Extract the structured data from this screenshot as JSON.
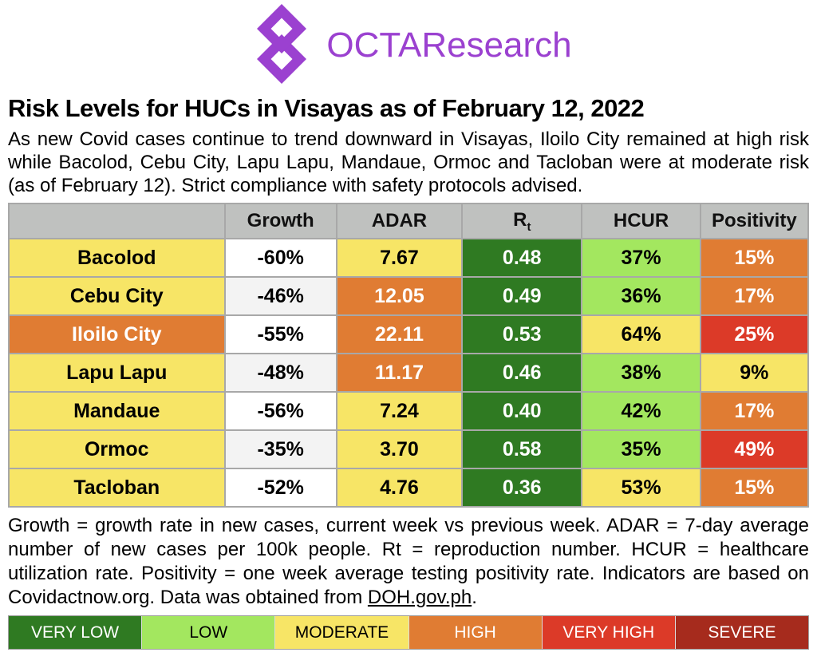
{
  "logo": {
    "text": "OCTAResearch",
    "color": "#9b41d0"
  },
  "title": "Risk Levels for HUCs in Visayas as of February 12, 2022",
  "intro": "As new Covid cases continue to trend downward in Visayas, Iloilo City remained at high risk while Bacolod, Cebu City, Lapu Lapu, Mandaue, Ormoc and Tacloban were at moderate risk (as of February 12). Strict compliance with safety protocols advised.",
  "table": {
    "header_bg": "#bfc1bf",
    "headers": [
      "",
      "Growth",
      "ADAR",
      "R_t",
      "HCUR",
      "Positivity"
    ],
    "rows": [
      {
        "city": "Bacolod",
        "city_level": "moderate",
        "growth": "-60%",
        "adar": "7.67",
        "adar_level": "moderate",
        "rt": "0.48",
        "rt_level": "verylow",
        "hcur": "37%",
        "hcur_level": "low",
        "positivity": "15%",
        "positivity_level": "high"
      },
      {
        "city": "Cebu City",
        "city_level": "moderate",
        "growth": "-46%",
        "adar": "12.05",
        "adar_level": "high",
        "rt": "0.49",
        "rt_level": "verylow",
        "hcur": "36%",
        "hcur_level": "low",
        "positivity": "17%",
        "positivity_level": "high"
      },
      {
        "city": "Iloilo City",
        "city_level": "high",
        "growth": "-55%",
        "adar": "22.11",
        "adar_level": "high",
        "rt": "0.53",
        "rt_level": "verylow",
        "hcur": "64%",
        "hcur_level": "moderate",
        "positivity": "25%",
        "positivity_level": "veryhigh"
      },
      {
        "city": "Lapu Lapu",
        "city_level": "moderate",
        "growth": "-48%",
        "adar": "11.17",
        "adar_level": "high",
        "rt": "0.46",
        "rt_level": "verylow",
        "hcur": "38%",
        "hcur_level": "low",
        "positivity": "9%",
        "positivity_level": "moderate"
      },
      {
        "city": "Mandaue",
        "city_level": "moderate",
        "growth": "-56%",
        "adar": "7.24",
        "adar_level": "moderate",
        "rt": "0.40",
        "rt_level": "verylow",
        "hcur": "42%",
        "hcur_level": "low",
        "positivity": "17%",
        "positivity_level": "high"
      },
      {
        "city": "Ormoc",
        "city_level": "moderate",
        "growth": "-35%",
        "adar": "3.70",
        "adar_level": "moderate",
        "rt": "0.58",
        "rt_level": "verylow",
        "hcur": "35%",
        "hcur_level": "low",
        "positivity": "49%",
        "positivity_level": "veryhigh"
      },
      {
        "city": "Tacloban",
        "city_level": "moderate",
        "growth": "-52%",
        "adar": "4.76",
        "adar_level": "moderate",
        "rt": "0.36",
        "rt_level": "verylow",
        "hcur": "53%",
        "hcur_level": "moderate",
        "positivity": "15%",
        "positivity_level": "high"
      }
    ]
  },
  "footnote": {
    "text": "Growth = growth rate in new cases, current week vs previous week. ADAR = 7-day average number of new cases per 100k people. Rt = reproduction number. HCUR = healthcare utilization rate. Positivity = one week average testing positivity rate. Indicators are based on Covidactnow.org. Data was obtained from ",
    "link": "DOH.gov.ph",
    "suffix": "."
  },
  "legend": [
    {
      "label": "VERY LOW",
      "level": "verylow"
    },
    {
      "label": "LOW",
      "level": "low"
    },
    {
      "label": "MODERATE",
      "level": "moderate"
    },
    {
      "label": "HIGH",
      "level": "high"
    },
    {
      "label": "VERY HIGH",
      "level": "veryhigh"
    },
    {
      "label": "SEVERE",
      "level": "severe"
    }
  ],
  "colors": {
    "verylow": {
      "bg": "#2f7a22",
      "text": "#ffffff"
    },
    "low": {
      "bg": "#a3e75f",
      "text": "#000000"
    },
    "moderate": {
      "bg": "#f7e566",
      "text": "#000000"
    },
    "high": {
      "bg": "#e07c33",
      "text": "#ffffff"
    },
    "veryhigh": {
      "bg": "#dc3a28",
      "text": "#ffffff"
    },
    "severe": {
      "bg": "#a62b1d",
      "text": "#ffffff"
    }
  }
}
